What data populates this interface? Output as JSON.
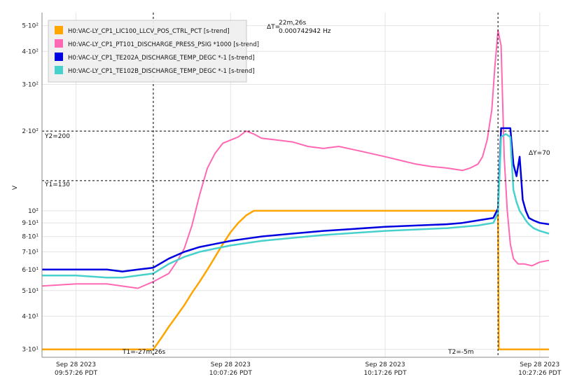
{
  "chart_data": {
    "type": "line",
    "ylabel": "V",
    "yscale": "log",
    "ylim": [
      28,
      560
    ],
    "y_ticks": [
      {
        "value": 30,
        "label": "3·10¹"
      },
      {
        "value": 40,
        "label": "4·10¹"
      },
      {
        "value": 50,
        "label": "5·10¹"
      },
      {
        "value": 60,
        "label": "6·10¹"
      },
      {
        "value": 70,
        "label": "7·10¹"
      },
      {
        "value": 80,
        "label": "8·10¹"
      },
      {
        "value": 90,
        "label": "9·10¹"
      },
      {
        "value": 100,
        "label": "10²"
      },
      {
        "value": 200,
        "label": "2·10²"
      },
      {
        "value": 300,
        "label": "3·10²"
      },
      {
        "value": 400,
        "label": "4·10²"
      },
      {
        "value": 500,
        "label": "5·10²"
      }
    ],
    "x_unit": "minutes",
    "xlim": [
      -2.2,
      30.6
    ],
    "x_ticks": [
      {
        "value": 0,
        "date": "Sep 28 2023",
        "time": "09:57:26 PDT"
      },
      {
        "value": 10,
        "date": "Sep 28 2023",
        "time": "10:07:26 PDT"
      },
      {
        "value": 20,
        "date": "Sep 28 2023",
        "time": "10:17:26 PDT"
      },
      {
        "value": 30,
        "date": "Sep 28 2023",
        "time": "10:27:26 PDT"
      }
    ],
    "grid": true,
    "legend_position": "top-left",
    "series": [
      {
        "name": "H0:VAC-LY_CP1_LIC100_LLCV_POS_CTRL_PCT [s-trend]",
        "color": "#FFA500",
        "x": [
          -2.2,
          5,
          5.5,
          6,
          6.5,
          7,
          7.5,
          8,
          8.5,
          9,
          9.5,
          10,
          10.5,
          11,
          11.5,
          12,
          20,
          25,
          27.3,
          27.35,
          28,
          30.6
        ],
        "y": [
          30,
          30,
          33,
          36.5,
          40,
          44,
          49,
          54,
          60,
          67,
          75,
          83,
          90,
          96,
          100,
          100,
          100,
          100,
          100,
          30,
          30,
          30
        ]
      },
      {
        "name": "H0:VAC-LY_CP1_PT101_DISCHARGE_PRESS_PSIG *1000 [s-trend]",
        "color": "#FF69B4",
        "x": [
          -2.2,
          0,
          2,
          4,
          5,
          6,
          6.5,
          7,
          7.5,
          8,
          8.5,
          9,
          9.5,
          10,
          10.5,
          11,
          11.5,
          12,
          13,
          14,
          15,
          16,
          17,
          18,
          19,
          20,
          21,
          22,
          23,
          24,
          25,
          25.5,
          26,
          26.3,
          26.6,
          26.9,
          27.1,
          27.3,
          27.5,
          27.7,
          27.9,
          28.1,
          28.3,
          28.6,
          29,
          29.5,
          30,
          30.6
        ],
        "y": [
          52,
          53,
          53,
          51,
          54,
          58,
          64,
          72,
          88,
          115,
          145,
          165,
          180,
          185,
          190,
          200,
          195,
          188,
          185,
          182,
          175,
          172,
          175,
          170,
          165,
          160,
          155,
          150,
          147,
          145,
          142,
          145,
          150,
          160,
          185,
          240,
          350,
          480,
          420,
          160,
          100,
          75,
          66,
          63,
          63,
          62,
          64,
          65
        ]
      },
      {
        "name": "H0:VAC-LY_CP1_TE202A_DISCHARGE_TEMP_DEGC *-1 [s-trend]",
        "color": "#0000E0",
        "x": [
          -2.2,
          0,
          2,
          3,
          4,
          5,
          6,
          7,
          8,
          9,
          10,
          11,
          12,
          14,
          16,
          18,
          20,
          22,
          24,
          25,
          26,
          27,
          27.3,
          27.5,
          27.8,
          28.1,
          28.3,
          28.5,
          28.7,
          28.9,
          29.1,
          29.3,
          29.6,
          30,
          30.6
        ],
        "y": [
          60,
          60,
          60,
          59,
          60,
          61,
          66,
          70,
          73,
          75,
          77,
          78.5,
          80,
          82,
          84,
          85.5,
          87,
          88,
          89,
          90,
          92,
          94,
          102,
          205,
          205,
          205,
          150,
          135,
          160,
          110,
          100,
          94,
          92,
          90,
          89
        ]
      },
      {
        "name": "H0:VAC-LY_CP1_TE102B_DISCHARGE_TEMP_DEGC *-1 [s-trend]",
        "color": "#48D1CC",
        "x": [
          -2.2,
          0,
          2,
          3,
          4,
          5,
          6,
          7,
          8,
          9,
          10,
          11,
          12,
          14,
          16,
          18,
          20,
          22,
          24,
          25,
          26,
          27,
          27.3,
          27.5,
          27.8,
          28.1,
          28.3,
          28.5,
          28.7,
          28.9,
          29.1,
          29.3,
          29.6,
          30,
          30.6
        ],
        "y": [
          57,
          57,
          56,
          56,
          57,
          58,
          63,
          67,
          70,
          72,
          74,
          75.5,
          77,
          79,
          81,
          82.5,
          84,
          85,
          86,
          87,
          88,
          90,
          98,
          190,
          195,
          190,
          120,
          108,
          100,
          96,
          92,
          89,
          86,
          84,
          82
        ]
      }
    ],
    "cursors": {
      "t1_label": "T1=-27m,26s",
      "t2_label": "T2=-5m",
      "delta_t_label": "ΔT=",
      "delta_t_value": "22m,26s",
      "delta_t_freq": "0.000742942 Hz",
      "y1_label": "Y1=130",
      "y2_label": "Y2=200",
      "delta_y_label": "ΔY=70",
      "t1_x": 5,
      "t2_x": 27.3,
      "y1": 130,
      "y2": 200
    }
  }
}
